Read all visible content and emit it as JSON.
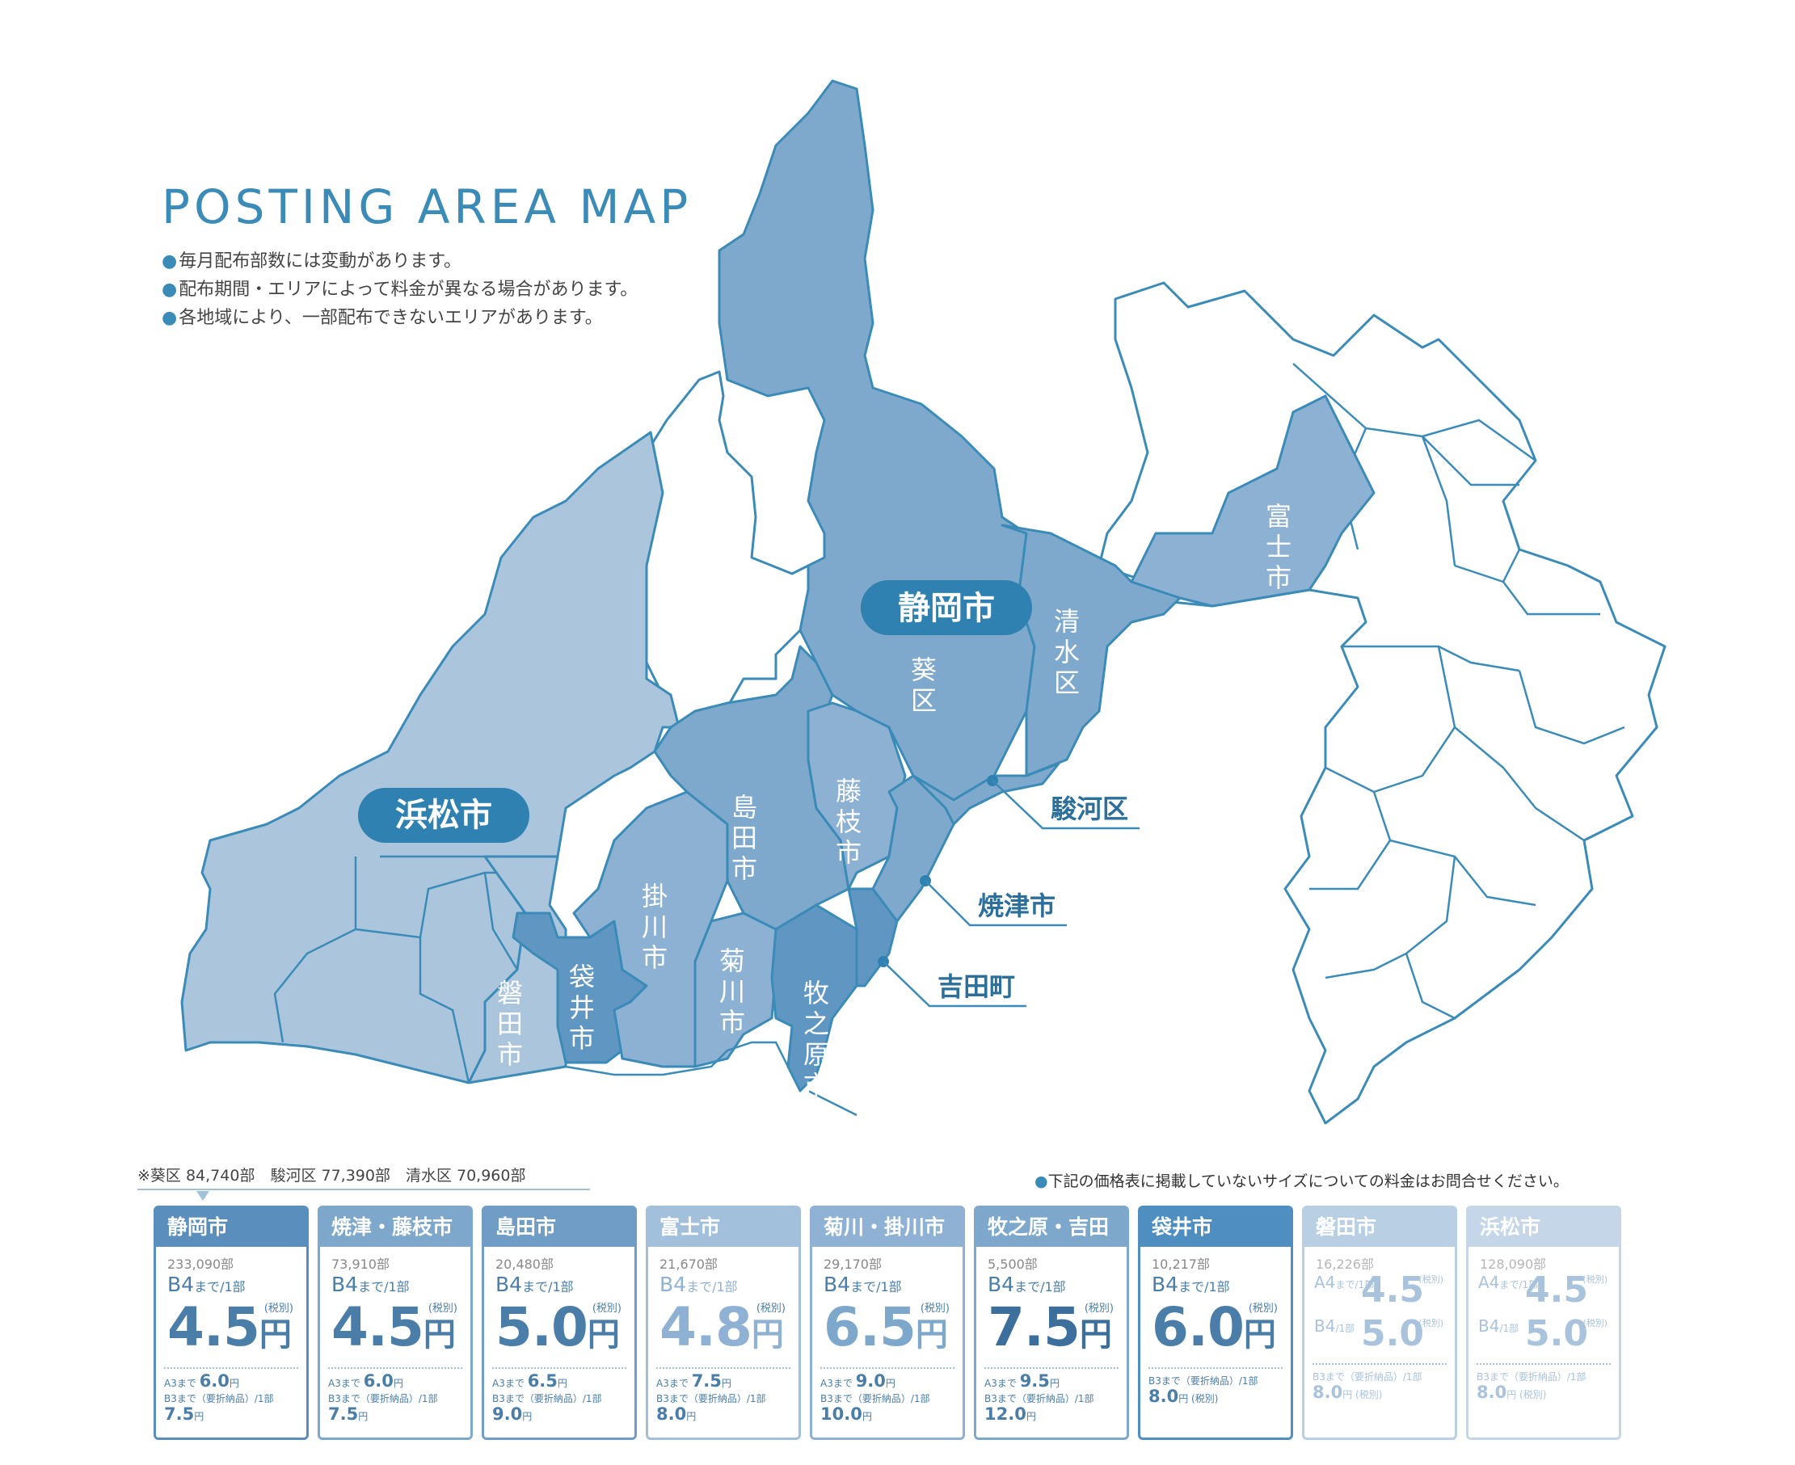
{
  "title": "POSTING AREA MAP",
  "notes": [
    "毎月配布部数には変動があります。",
    "配布期間・エリアによって料金が異なる場合があります。",
    "各地域により、一部配布できないエリアがあります。"
  ],
  "map": {
    "pills": {
      "shizuoka": "静岡市",
      "hamamatsu": "浜松市"
    },
    "regions": {
      "aoi": "葵区",
      "shimizu": "清水区",
      "fuji": "富士市",
      "shimada": "島田市",
      "fujieda": "藤枝市",
      "kakegawa": "掛川市",
      "fukuroi": "袋井市",
      "iwata": "磐田市",
      "kikugawa": "菊川市",
      "makinohara": "牧之原市"
    },
    "callouts": {
      "suruga": "駿河区",
      "yaizu": "焼津市",
      "yoshida": "吉田町"
    }
  },
  "subnote": "※葵区 84,740部　駿河区 77,390部　清水区 70,960部",
  "price_note": "下記の価格表に掲載していないサイズについての料金はお問合せください。",
  "cards": [
    {
      "name": "静岡市",
      "copies": "233,090部",
      "size": "B4",
      "size_suffix": "まで/1部",
      "price": "4.5",
      "yen": "円",
      "tax": "(税別)",
      "sub1_label": "A3まで",
      "sub1_price": "6.0",
      "sub2_label": "B3まで（要折納品）/1部",
      "sub2_price": "7.5",
      "sub_yen": "円"
    },
    {
      "name": "焼津・藤枝市",
      "copies": "73,910部",
      "size": "B4",
      "size_suffix": "まで/1部",
      "price": "4.5",
      "yen": "円",
      "tax": "(税別)",
      "sub1_label": "A3まで",
      "sub1_price": "6.0",
      "sub2_label": "B3まで（要折納品）/1部",
      "sub2_price": "7.5",
      "sub_yen": "円"
    },
    {
      "name": "島田市",
      "copies": "20,480部",
      "size": "B4",
      "size_suffix": "まで/1部",
      "price": "5.0",
      "yen": "円",
      "tax": "(税別)",
      "sub1_label": "A3まで",
      "sub1_price": "6.5",
      "sub2_label": "B3まで（要折納品）/1部",
      "sub2_price": "9.0",
      "sub_yen": "円"
    },
    {
      "name": "富士市",
      "copies": "21,670部",
      "size": "B4",
      "size_suffix": "まで/1部",
      "price": "4.8",
      "yen": "円",
      "tax": "(税別)",
      "sub1_label": "A3まで",
      "sub1_price": "7.5",
      "sub2_label": "B3まで（要折納品）/1部",
      "sub2_price": "8.0",
      "sub_yen": "円"
    },
    {
      "name": "菊川・掛川市",
      "copies": "29,170部",
      "size": "B4",
      "size_suffix": "まで/1部",
      "price": "6.5",
      "yen": "円",
      "tax": "(税別)",
      "sub1_label": "A3まで",
      "sub1_price": "9.0",
      "sub2_label": "B3まで（要折納品）/1部",
      "sub2_price": "10.0",
      "sub_yen": "円"
    },
    {
      "name": "牧之原・吉田",
      "copies": "5,500部",
      "size": "B4",
      "size_suffix": "まで/1部",
      "price": "7.5",
      "yen": "円",
      "tax": "(税別)",
      "sub1_label": "A3まで",
      "sub1_price": "9.5",
      "sub2_label": "B3まで（要折納品）/1部",
      "sub2_price": "12.0",
      "sub_yen": "円"
    },
    {
      "name": "袋井市",
      "copies": "10,217部",
      "size": "B4",
      "size_suffix": "まで/1部",
      "price": "6.0",
      "yen": "円",
      "tax": "(税別)",
      "sub2_label": "B3まで（要折納品）/1部",
      "sub2_price": "8.0",
      "sub_yen": "円",
      "sub2_tax": "(税別)"
    },
    {
      "name": "磐田市",
      "copies": "16,226部",
      "alt1_size": "A4",
      "alt1_suffix": "まで/1部",
      "alt1_price": "4.5",
      "alt2_size": "B4",
      "alt2_suffix": "/1部",
      "alt2_price": "5.0",
      "yen": "円",
      "tax": "(税別)",
      "sub2_label": "B3まで（要折納品）/1部",
      "sub2_price": "8.0",
      "sub_yen": "円",
      "sub2_tax": "(税別)"
    },
    {
      "name": "浜松市",
      "copies": "128,090部",
      "alt1_size": "A4",
      "alt1_suffix": "まで/1部",
      "alt1_price": "4.5",
      "alt2_size": "B4",
      "alt2_suffix": "/1部",
      "alt2_price": "5.0",
      "yen": "円",
      "tax": "(税別)",
      "sub2_label": "B3まで（要折納品）/1部",
      "sub2_price": "8.0",
      "sub_yen": "円",
      "sub2_tax": "(税別)"
    }
  ]
}
